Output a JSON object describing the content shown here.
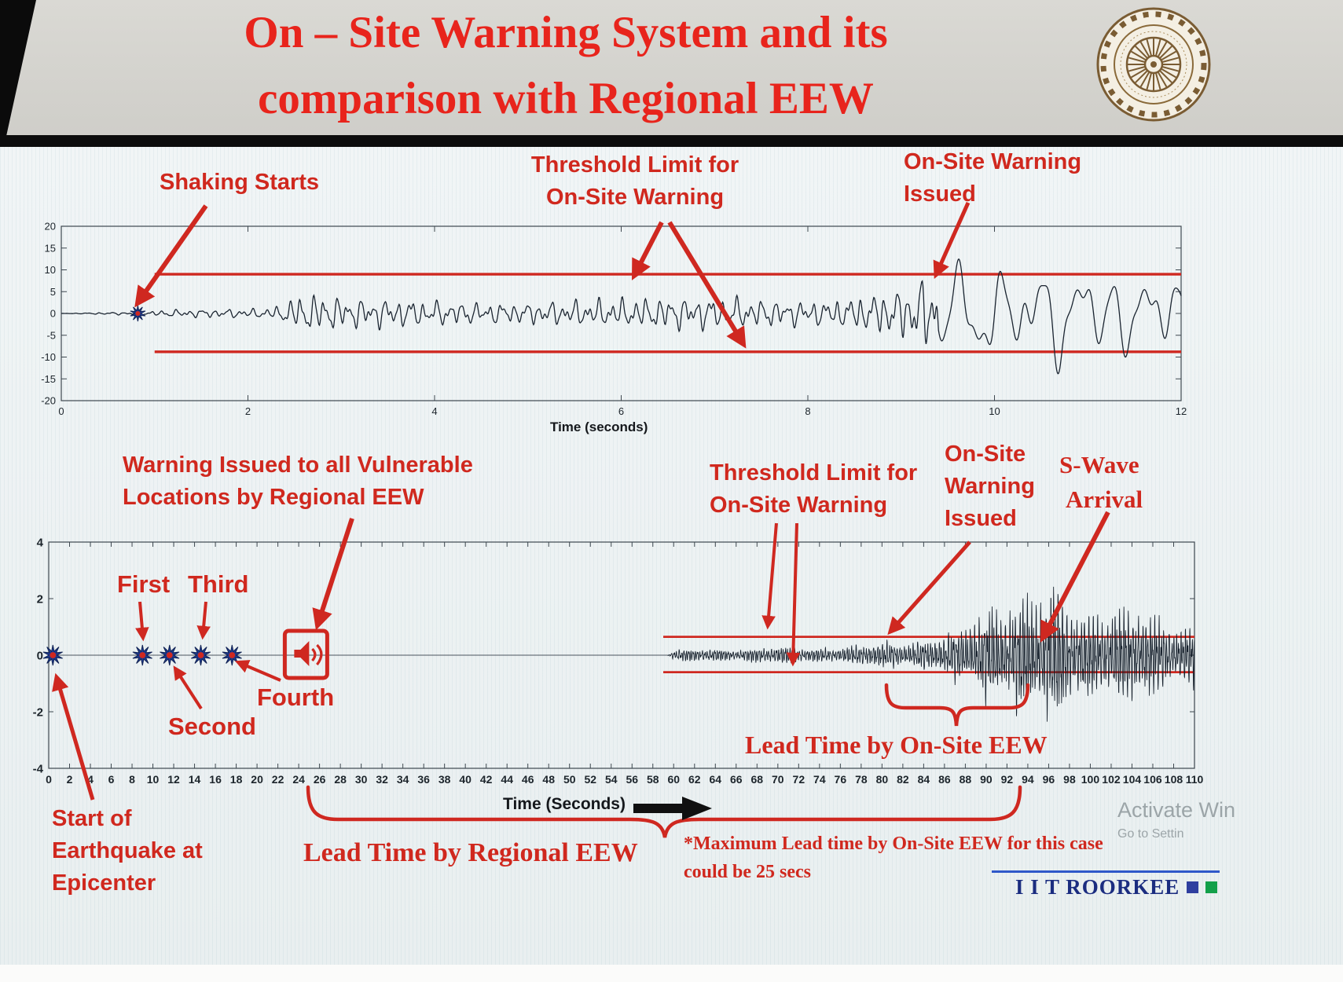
{
  "slide": {
    "title": [
      "On – Site Warning System and its",
      "comparison with Regional EEW"
    ],
    "footer_brand": "I I T ROORKEE",
    "watermark": [
      "Activate Win",
      "Go to Settin"
    ]
  },
  "annotations": {
    "top": {
      "shaking_starts": "Shaking Starts",
      "threshold": [
        "Threshold Limit for",
        "On-Site Warning"
      ],
      "warning_issued": [
        "On-Site Warning",
        "Issued"
      ]
    },
    "bottom": {
      "regional_warning": [
        "Warning Issued to all Vulnerable",
        "Locations by Regional EEW"
      ],
      "first": "First",
      "second": "Second",
      "third": "Third",
      "fourth": "Fourth",
      "threshold": [
        "Threshold Limit for",
        "On-Site Warning"
      ],
      "onsite_issued": [
        "On-Site",
        "Warning",
        "Issued"
      ],
      "s_wave": [
        "S-Wave",
        "Arrival"
      ],
      "lead_onsite": "Lead Time by On-Site EEW",
      "start_epicenter": [
        "Start of",
        "Earthquake at",
        "Epicenter"
      ],
      "lead_regional": "Lead Time by Regional EEW",
      "note": [
        "*Maximum Lead time by On-Site EEW for this case",
        "could be 25 secs"
      ]
    }
  },
  "chart_data": [
    {
      "type": "line",
      "name": "on-site-accelerogram",
      "title": "",
      "xlabel": "Time (seconds)",
      "ylabel": "",
      "xlim": [
        0,
        12
      ],
      "xticks": [
        0,
        2,
        4,
        6,
        8,
        10,
        12
      ],
      "ylim": [
        -20,
        20
      ],
      "yticks": [
        -20,
        -15,
        -10,
        -5,
        0,
        5,
        10,
        15,
        20
      ],
      "grid": false,
      "legend": null,
      "line_color": "#1a2430",
      "threshold": {
        "upper": 9,
        "lower": -8.8,
        "t_start": 1.0,
        "color": "#cf2820"
      },
      "events": [
        {
          "label": "shaking-starts",
          "t": 0.82,
          "value": 0
        }
      ],
      "annotations_t": {
        "shaking_starts": 0.82,
        "onsite_warning_issued": 9.4
      },
      "envelope": [
        [
          0,
          0
        ],
        [
          0.82,
          0.5
        ],
        [
          1.3,
          1.3
        ],
        [
          2.25,
          1.5
        ],
        [
          2.6,
          5.6
        ],
        [
          3.1,
          4.0
        ],
        [
          4.2,
          4.8
        ],
        [
          5.2,
          5.2
        ],
        [
          6.2,
          4.8
        ],
        [
          7.2,
          5.4
        ],
        [
          8.2,
          4.4
        ],
        [
          9.0,
          6.5
        ],
        [
          9.4,
          10
        ],
        [
          10.1,
          13.5
        ],
        [
          10.7,
          17
        ],
        [
          11.2,
          14.5
        ],
        [
          11.7,
          17
        ],
        [
          12,
          14
        ]
      ],
      "base_freq": 7.5,
      "late_freq": 2.6,
      "freq_change_t": 9.4,
      "samples": 1800
    },
    {
      "type": "line",
      "name": "regional-accelerogram",
      "title": "",
      "xlabel": "Time (Seconds)",
      "ylabel": "",
      "xlim": [
        0,
        110
      ],
      "xticks": [
        0,
        2,
        4,
        6,
        8,
        10,
        12,
        14,
        16,
        18,
        20,
        22,
        24,
        26,
        28,
        30,
        32,
        34,
        36,
        38,
        40,
        42,
        44,
        46,
        48,
        50,
        52,
        54,
        56,
        58,
        60,
        62,
        64,
        66,
        68,
        70,
        72,
        74,
        76,
        78,
        80,
        82,
        84,
        86,
        88,
        90,
        92,
        94,
        96,
        98,
        100,
        102,
        104,
        106,
        108,
        110
      ],
      "ylim": [
        -4,
        4
      ],
      "yticks": [
        -4,
        -2,
        0,
        2,
        4
      ],
      "grid": false,
      "legend": null,
      "line_color": "#16202c",
      "threshold": {
        "upper": 0.65,
        "lower": -0.6,
        "t_start": 59,
        "color": "#cf2820"
      },
      "events": [
        {
          "label": "start-of-earthquake",
          "t": 0.4,
          "value": 0
        },
        {
          "label": "first-station",
          "t": 9.0,
          "value": 0
        },
        {
          "label": "second-station",
          "t": 11.6,
          "value": 0
        },
        {
          "label": "third-station",
          "t": 14.6,
          "value": 0
        },
        {
          "label": "fourth-station",
          "t": 17.6,
          "value": 0
        }
      ],
      "warning_icon_t": 24.7,
      "annotations_t": {
        "onsite_warning_issued": 80,
        "s_wave_arrival": 93,
        "lead_time_onsite_span": [
          80,
          94
        ],
        "lead_time_regional_span": [
          25,
          93
        ]
      },
      "envelope": [
        [
          0,
          0
        ],
        [
          59.4,
          0
        ],
        [
          60,
          0.22
        ],
        [
          64,
          0.3
        ],
        [
          70,
          0.34
        ],
        [
          78,
          0.4
        ],
        [
          80,
          0.55
        ],
        [
          83,
          0.7
        ],
        [
          86,
          0.85
        ],
        [
          88,
          1.1
        ],
        [
          89.5,
          1.9
        ],
        [
          91,
          2.6
        ],
        [
          93,
          2.8
        ],
        [
          95,
          2.4
        ],
        [
          97,
          2.7
        ],
        [
          99,
          2.2
        ],
        [
          101,
          2.4
        ],
        [
          103,
          2.0
        ],
        [
          106,
          1.7
        ],
        [
          110,
          1.5
        ]
      ],
      "base_freq": 4.4,
      "samples": 5000
    }
  ]
}
